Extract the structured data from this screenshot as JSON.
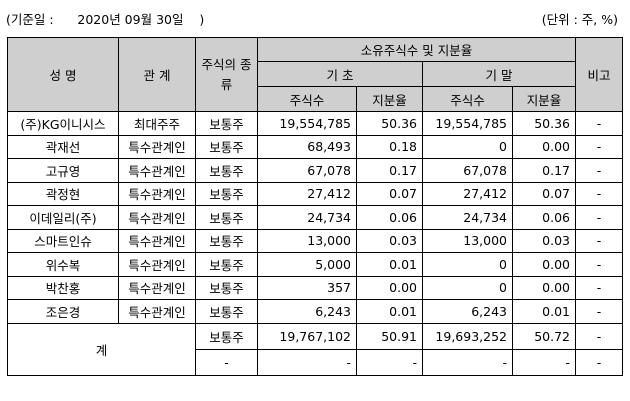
{
  "caption": {
    "left": "(기준일 :      2020년 09월 30일    )",
    "right": "(단위 : 주, %)"
  },
  "headers": {
    "name": "성 명",
    "relation": "관 계",
    "stock_type": "주식의 종류",
    "ownership_group": "소유주식수 및 지분율",
    "period_start": "기 초",
    "period_end": "기 말",
    "shares": "주식수",
    "ratio": "지분율",
    "remarks": "비고"
  },
  "rows": [
    {
      "name": "(주)KG이니시스",
      "relation": "최대주주",
      "type": "보통주",
      "start_shares": "19,554,785",
      "start_ratio": "50.36",
      "end_shares": "19,554,785",
      "end_ratio": "50.36",
      "remark": "-"
    },
    {
      "name": "곽재선",
      "relation": "특수관계인",
      "type": "보통주",
      "start_shares": "68,493",
      "start_ratio": "0.18",
      "end_shares": "0",
      "end_ratio": "0.00",
      "remark": "-"
    },
    {
      "name": "고규영",
      "relation": "특수관계인",
      "type": "보통주",
      "start_shares": "67,078",
      "start_ratio": "0.17",
      "end_shares": "67,078",
      "end_ratio": "0.17",
      "remark": "-"
    },
    {
      "name": "곽정현",
      "relation": "특수관계인",
      "type": "보통주",
      "start_shares": "27,412",
      "start_ratio": "0.07",
      "end_shares": "27,412",
      "end_ratio": "0.07",
      "remark": "-"
    },
    {
      "name": "이데일리(주)",
      "relation": "특수관계인",
      "type": "보통주",
      "start_shares": "24,734",
      "start_ratio": "0.06",
      "end_shares": "24,734",
      "end_ratio": "0.06",
      "remark": "-"
    },
    {
      "name": "스마트인슈",
      "relation": "특수관계인",
      "type": "보통주",
      "start_shares": "13,000",
      "start_ratio": "0.03",
      "end_shares": "13,000",
      "end_ratio": "0.03",
      "remark": "-"
    },
    {
      "name": "위수복",
      "relation": "특수관계인",
      "type": "보통주",
      "start_shares": "5,000",
      "start_ratio": "0.01",
      "end_shares": "0",
      "end_ratio": "0.00",
      "remark": "-"
    },
    {
      "name": "박찬홍",
      "relation": "특수관계인",
      "type": "보통주",
      "start_shares": "357",
      "start_ratio": "0.00",
      "end_shares": "0",
      "end_ratio": "0.00",
      "remark": "-"
    },
    {
      "name": "조은경",
      "relation": "특수관계인",
      "type": "보통주",
      "start_shares": "6,243",
      "start_ratio": "0.01",
      "end_shares": "6,243",
      "end_ratio": "0.01",
      "remark": "-"
    }
  ],
  "total": {
    "label": "계",
    "rows": [
      {
        "type": "보통주",
        "start_shares": "19,767,102",
        "start_ratio": "50.91",
        "end_shares": "19,693,252",
        "end_ratio": "50.72",
        "remark": "-"
      },
      {
        "type": "-",
        "start_shares": "-",
        "start_ratio": "-",
        "end_shares": "-",
        "end_ratio": "-",
        "remark": "-"
      }
    ]
  }
}
